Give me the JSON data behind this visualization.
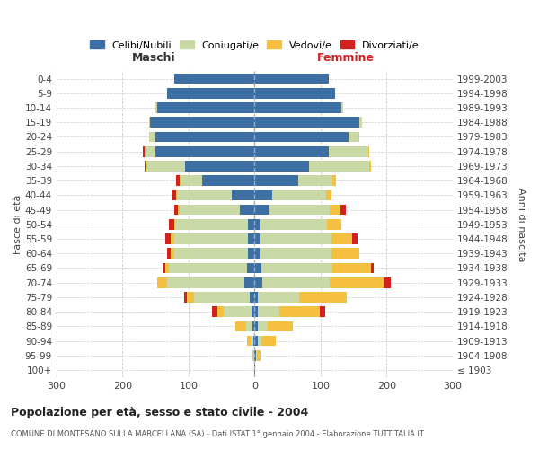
{
  "age_groups": [
    "100+",
    "95-99",
    "90-94",
    "85-89",
    "80-84",
    "75-79",
    "70-74",
    "65-69",
    "60-64",
    "55-59",
    "50-54",
    "45-49",
    "40-44",
    "35-39",
    "30-34",
    "25-29",
    "20-24",
    "15-19",
    "10-14",
    "5-9",
    "0-4"
  ],
  "birth_years": [
    "≤ 1903",
    "1904-1908",
    "1909-1913",
    "1914-1918",
    "1919-1923",
    "1924-1928",
    "1929-1933",
    "1934-1938",
    "1939-1943",
    "1944-1948",
    "1949-1953",
    "1954-1958",
    "1959-1963",
    "1964-1968",
    "1969-1973",
    "1974-1978",
    "1979-1983",
    "1984-1988",
    "1989-1993",
    "1994-1998",
    "1999-2003"
  ],
  "maschi": {
    "celibi": [
      0,
      0,
      2,
      3,
      5,
      7,
      15,
      12,
      10,
      10,
      10,
      22,
      35,
      80,
      105,
      150,
      150,
      158,
      148,
      132,
      122
    ],
    "coniugati": [
      0,
      2,
      4,
      10,
      42,
      85,
      118,
      118,
      112,
      112,
      110,
      92,
      82,
      32,
      58,
      15,
      10,
      2,
      2,
      0,
      0
    ],
    "vedovi": [
      0,
      1,
      5,
      16,
      10,
      10,
      15,
      5,
      5,
      5,
      2,
      2,
      2,
      2,
      2,
      2,
      0,
      0,
      0,
      0,
      0
    ],
    "divorziati": [
      0,
      0,
      0,
      0,
      8,
      5,
      0,
      5,
      5,
      8,
      8,
      5,
      5,
      5,
      2,
      2,
      0,
      0,
      0,
      0,
      0
    ]
  },
  "femmine": {
    "nubili": [
      1,
      2,
      5,
      5,
      5,
      5,
      12,
      10,
      8,
      8,
      8,
      22,
      26,
      66,
      82,
      112,
      142,
      158,
      132,
      122,
      112
    ],
    "coniugate": [
      0,
      2,
      5,
      15,
      32,
      62,
      102,
      108,
      108,
      108,
      102,
      92,
      82,
      52,
      92,
      60,
      15,
      5,
      2,
      0,
      0
    ],
    "vedove": [
      0,
      5,
      22,
      38,
      62,
      72,
      82,
      58,
      42,
      32,
      22,
      16,
      8,
      5,
      2,
      2,
      2,
      0,
      0,
      0,
      0
    ],
    "divorziate": [
      0,
      0,
      0,
      0,
      8,
      0,
      10,
      5,
      0,
      8,
      0,
      8,
      0,
      0,
      0,
      0,
      0,
      0,
      0,
      0,
      0
    ]
  },
  "colors": {
    "celibi": "#3d6fa5",
    "coniugati": "#c8d9a5",
    "vedovi": "#f5c040",
    "divorziati": "#d42020"
  },
  "title": "Popolazione per età, sesso e stato civile - 2004",
  "subtitle": "COMUNE DI MONTESANO SULLA MARCELLANA (SA) - Dati ISTAT 1° gennaio 2004 - Elaborazione TUTTITALIA.IT",
  "label_maschi": "Maschi",
  "label_femmine": "Femmine",
  "ylabel_left": "Fasce di età",
  "ylabel_right": "Anni di nascita",
  "legend_labels": [
    "Celibi/Nubili",
    "Coniugati/e",
    "Vedovi/e",
    "Divorziati/e"
  ],
  "xlim": 300,
  "bg_color": "#ffffff",
  "grid_color": "#cccccc",
  "bar_height": 0.72
}
